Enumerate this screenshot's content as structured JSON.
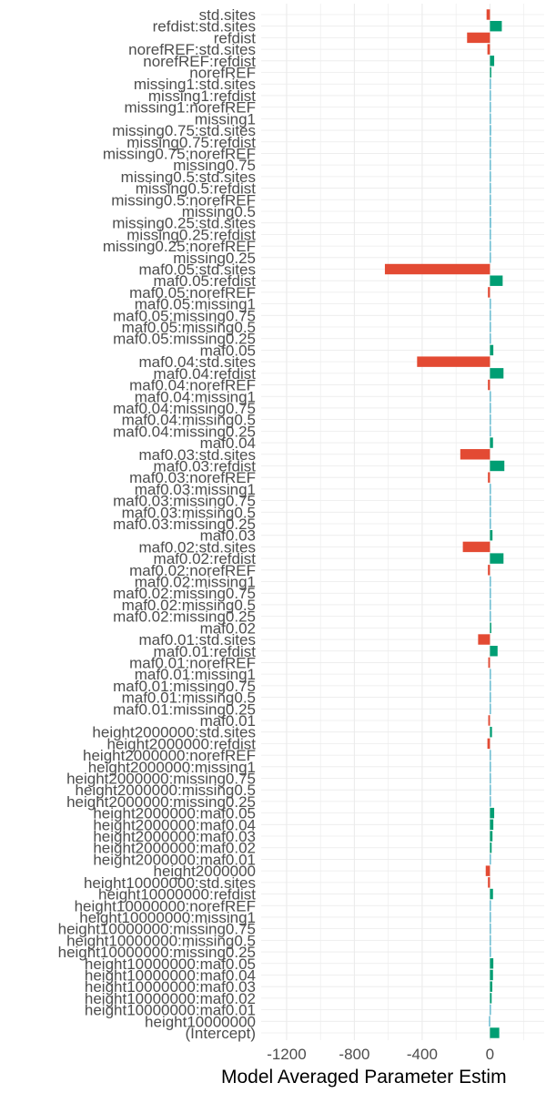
{
  "chart_data": {
    "type": "bar",
    "orientation": "horizontal",
    "xlabel": "Model Averaged Parameter Estim",
    "ylabel": "",
    "xlim": [
      -1350,
      320
    ],
    "xticks": [
      -1200,
      -800,
      -400,
      0
    ],
    "xtick_labels": [
      "-1200",
      "-800",
      "-400",
      "0"
    ],
    "grid": true,
    "legend": "none",
    "colors": {
      "negative": "#e34a33",
      "positive": "#009e73",
      "near_zero": "#26a2c2"
    },
    "categories": [
      "std.sites",
      "refdist:std.sites",
      "refdist",
      "norefREF:std.sites",
      "norefREF:refdist",
      "norefREF",
      "missing1:std.sites",
      "missing1:refdist",
      "missing1:norefREF",
      "missing1",
      "missing0.75:std.sites",
      "missing0.75:refdist",
      "missing0.75:norefREF",
      "missing0.75",
      "missing0.5:std.sites",
      "missing0.5:refdist",
      "missing0.5:norefREF",
      "missing0.5",
      "missing0.25:std.sites",
      "missing0.25:refdist",
      "missing0.25:norefREF",
      "missing0.25",
      "maf0.05:std.sites",
      "maf0.05:refdist",
      "maf0.05:norefREF",
      "maf0.05:missing1",
      "maf0.05:missing0.75",
      "maf0.05:missing0.5",
      "maf0.05:missing0.25",
      "maf0.05",
      "maf0.04:std.sites",
      "maf0.04:refdist",
      "maf0.04:norefREF",
      "maf0.04:missing1",
      "maf0.04:missing0.75",
      "maf0.04:missing0.5",
      "maf0.04:missing0.25",
      "maf0.04",
      "maf0.03:std.sites",
      "maf0.03:refdist",
      "maf0.03:norefREF",
      "maf0.03:missing1",
      "maf0.03:missing0.75",
      "maf0.03:missing0.5",
      "maf0.03:missing0.25",
      "maf0.03",
      "maf0.02:std.sites",
      "maf0.02:refdist",
      "maf0.02:norefREF",
      "maf0.02:missing1",
      "maf0.02:missing0.75",
      "maf0.02:missing0.5",
      "maf0.02:missing0.25",
      "maf0.02",
      "maf0.01:std.sites",
      "maf0.01:refdist",
      "maf0.01:norefREF",
      "maf0.01:missing1",
      "maf0.01:missing0.75",
      "maf0.01:missing0.5",
      "maf0.01:missing0.25",
      "maf0.01",
      "height2000000:std.sites",
      "height2000000:refdist",
      "height2000000:norefREF",
      "height2000000:missing1",
      "height2000000:missing0.75",
      "height2000000:missing0.5",
      "height2000000:missing0.25",
      "height2000000:maf0.05",
      "height2000000:maf0.04",
      "height2000000:maf0.03",
      "height2000000:maf0.02",
      "height2000000:maf0.01",
      "height2000000",
      "height10000000:std.sites",
      "height10000000:refdist",
      "height10000000:norefREF",
      "height10000000:missing1",
      "height10000000:missing0.75",
      "height10000000:missing0.5",
      "height10000000:missing0.25",
      "height10000000:maf0.05",
      "height10000000:maf0.04",
      "height10000000:maf0.03",
      "height10000000:maf0.02",
      "height10000000:maf0.01",
      "height10000000",
      "(Intercept)"
    ],
    "values": [
      -20,
      70,
      -135,
      -15,
      25,
      8,
      5,
      4,
      4,
      4,
      6,
      5,
      4,
      4,
      5,
      4,
      4,
      4,
      6,
      5,
      4,
      4,
      -620,
      75,
      -12,
      3,
      3,
      3,
      3,
      20,
      -430,
      80,
      -12,
      3,
      3,
      3,
      3,
      18,
      -175,
      85,
      -12,
      3,
      3,
      3,
      3,
      15,
      -160,
      80,
      -12,
      3,
      3,
      3,
      3,
      8,
      -70,
      45,
      -10,
      3,
      3,
      3,
      3,
      -10,
      12,
      -15,
      3,
      3,
      3,
      3,
      3,
      25,
      20,
      15,
      10,
      5,
      -25,
      -12,
      18,
      3,
      3,
      3,
      3,
      3,
      20,
      18,
      14,
      10,
      5,
      -5,
      55
    ]
  }
}
